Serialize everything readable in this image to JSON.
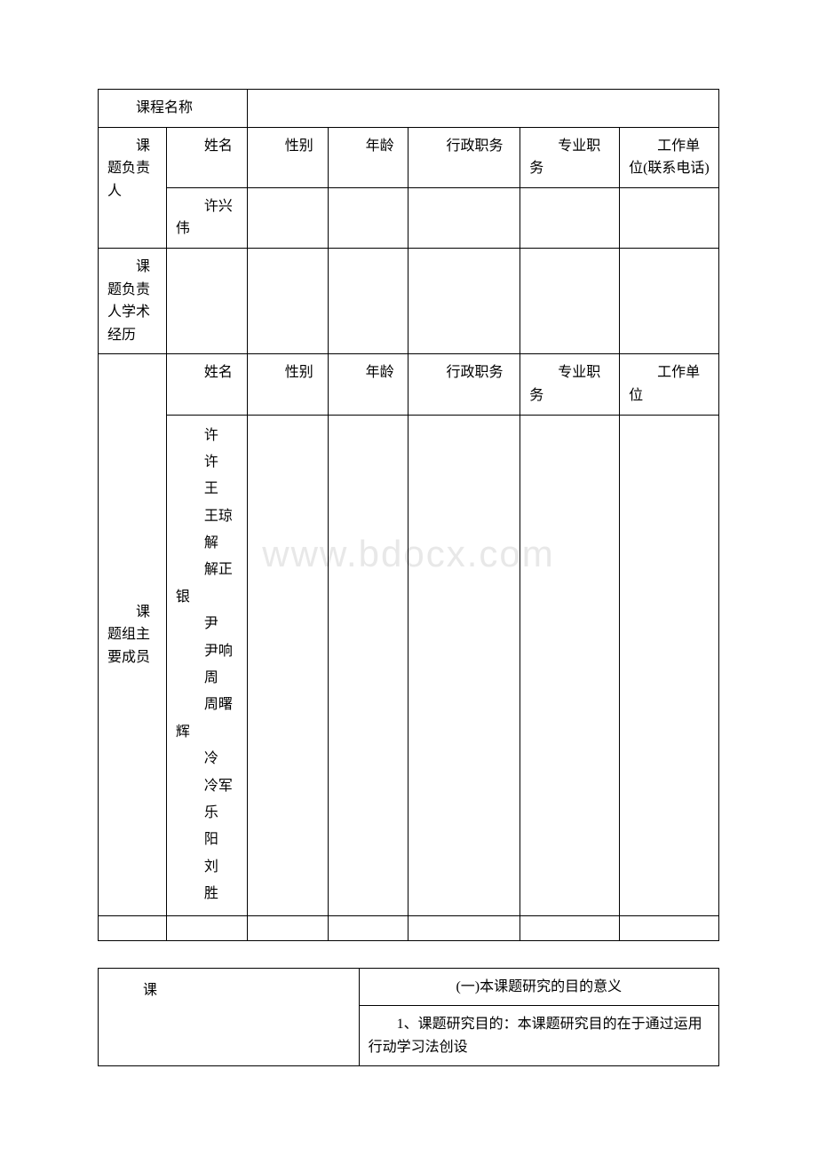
{
  "watermark_text": "www.bdocx.com",
  "table1": {
    "row_course_name_label": "课程名称",
    "leader_label": "课题负责人",
    "headers": {
      "name": "姓名",
      "gender": "性别",
      "age": "年龄",
      "admin_position": "行政职务",
      "pro_position": "专业职务",
      "work_unit_phone": "工作单位(联系电话)"
    },
    "leader_name": "许兴伟",
    "academic_history_label": "课题负责人学术经历",
    "members_label": "课题组主要成员",
    "member_headers": {
      "name": "姓名",
      "gender": "性别",
      "age": "年龄",
      "admin_position": "行政职务",
      "pro_position": "专业职务",
      "work_unit": "工作单位"
    },
    "member_names": [
      "许",
      "许",
      "王",
      "王琼",
      "解",
      "解正银",
      "尹",
      "尹响",
      "周",
      "周曙辉",
      "冷",
      "冷军",
      "乐",
      "阳",
      "刘",
      "胜"
    ]
  },
  "table2": {
    "left_label": "课",
    "section_title": "(一)本课题研究的目的意义",
    "section_body": "1、课题研究目的：本课题研究目的在于通过运用行动学习法创设"
  },
  "styling": {
    "border_color": "#000000",
    "background_color": "#ffffff",
    "text_color": "#000000",
    "font_family": "SimSun",
    "base_fontsize": 16,
    "watermark_color": "#e8e8e8",
    "watermark_fontsize": 42
  }
}
